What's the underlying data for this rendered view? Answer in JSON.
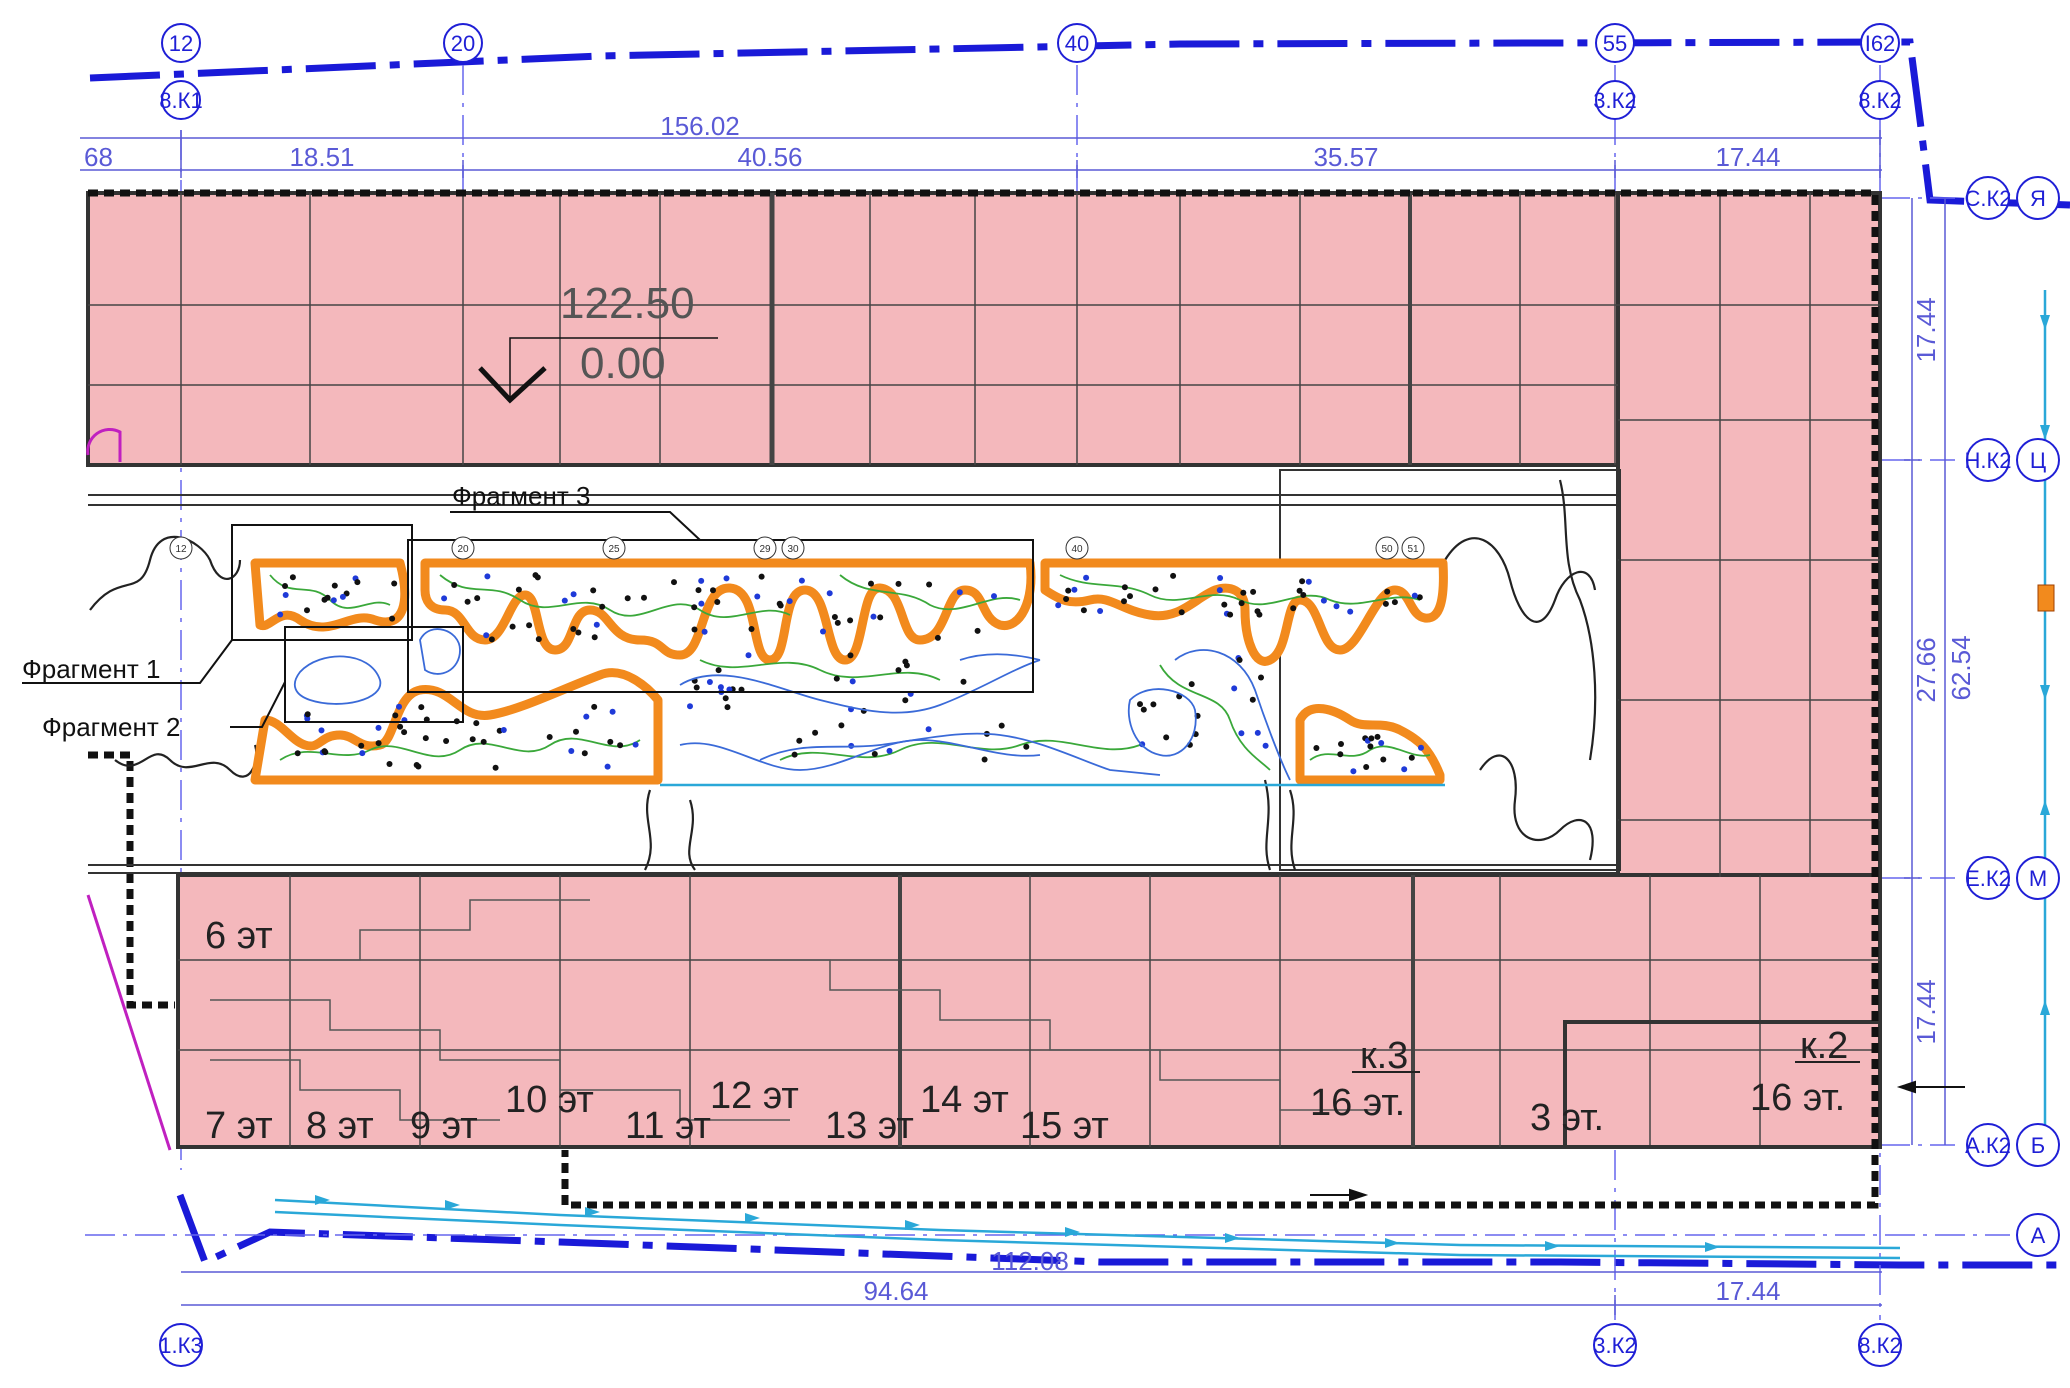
{
  "top_axes": [
    {
      "num": "12",
      "sub": "8.К1"
    },
    {
      "num": "20",
      "sub": ""
    },
    {
      "num": "40",
      "sub": ""
    },
    {
      "num": "55",
      "sub": "3.К2"
    },
    {
      "num": "I62",
      "sub": "8.К2"
    }
  ],
  "bottom_axes": [
    "1.К3",
    "3.К2",
    "8.К2"
  ],
  "right_axes": [
    {
      "code": "С.К2",
      "letter": "Я"
    },
    {
      "code": "Н.К2",
      "letter": "Ц"
    },
    {
      "code": "Е.К2",
      "letter": "М"
    },
    {
      "code": "А.К2",
      "letter": "Б"
    },
    {
      "code": "",
      "letter": "А"
    }
  ],
  "dims_top": {
    "overall": "156.02",
    "left_cut": "68",
    "segments": [
      "18.51",
      "40.56",
      "35.57",
      "17.44"
    ]
  },
  "dims_bottom": {
    "overall": "112.08",
    "segments": [
      "94.64",
      "17.44"
    ]
  },
  "dims_right": {
    "overall": "62.54",
    "segments": [
      "17.44",
      "27.66",
      "17.44"
    ]
  },
  "elevation": {
    "top": "122.50",
    "bottom": "0.00"
  },
  "fragments": [
    "Фрагмент 1",
    "Фрагмент 2",
    "Фрагмент 3"
  ],
  "building_labels": {
    "korpus3": "к.3",
    "korpus2": "к.2",
    "k2_floors": "16 эт.",
    "floors": [
      "6 эт",
      "7 эт",
      "8 эт",
      "9 эт",
      "10 эт",
      "11 эт",
      "12 эт",
      "13 эт",
      "14 эт",
      "15 эт",
      "16 эт.",
      "3 эт."
    ]
  },
  "mini_axes": [
    "12",
    "20",
    "25",
    "29",
    "30",
    "40",
    "50",
    "51"
  ],
  "colors": {
    "building_fill": "#f4b8bc",
    "axis_blue": "#1f1fd6",
    "boundary_blue": "#1a1ad8",
    "planter_orange": "#f28a1d",
    "path_green": "#3aa83a",
    "drain_cyan": "#2aa8d8"
  }
}
